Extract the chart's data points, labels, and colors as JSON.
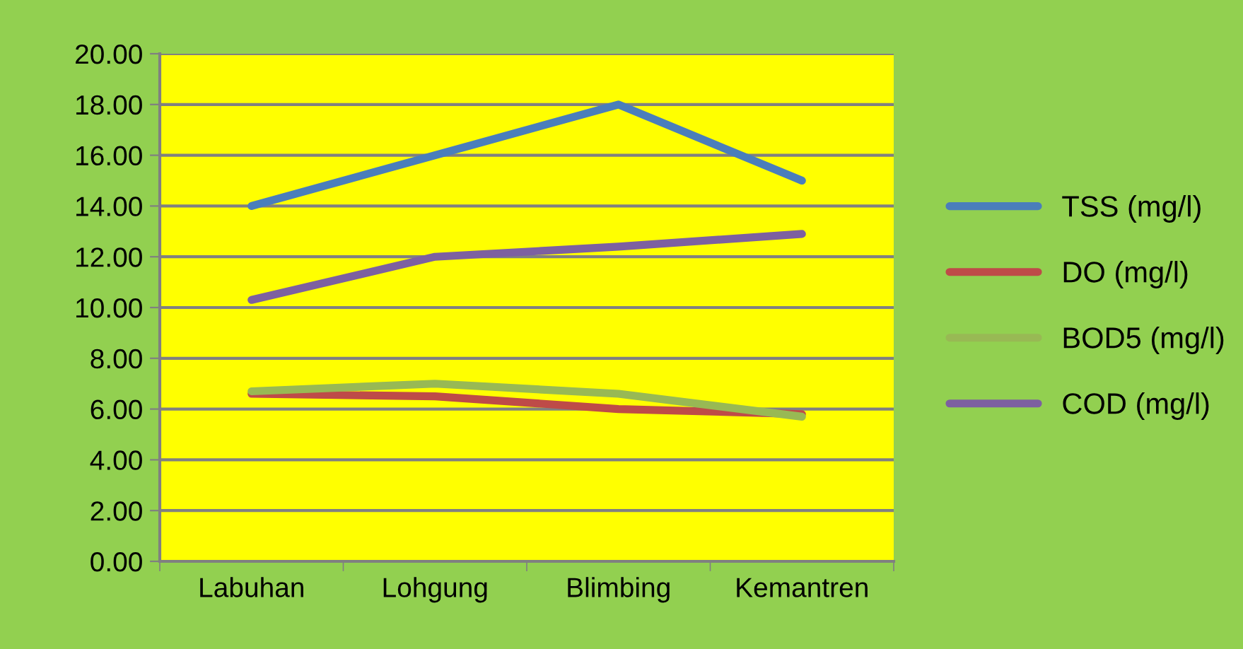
{
  "chart_data": {
    "type": "line",
    "categories": [
      "Labuhan",
      "Lohgung",
      "Blimbing",
      "Kemantren"
    ],
    "series": [
      {
        "name": "TSS (mg/l)",
        "color": "#4a7ebb",
        "values": [
          14,
          16,
          18,
          15
        ]
      },
      {
        "name": "DO (mg/l)",
        "color": "#be4b48",
        "values": [
          6.6,
          6.5,
          6.0,
          5.8
        ]
      },
      {
        "name": "BOD5 (mg/l)",
        "color": "#98b954",
        "values": [
          6.7,
          7.0,
          6.6,
          5.7
        ]
      },
      {
        "name": "COD (mg/l)",
        "color": "#7d60a0",
        "values": [
          10.3,
          12.0,
          12.4,
          12.9
        ]
      }
    ],
    "ylim": [
      0,
      20
    ],
    "yticks": [
      {
        "value": 0,
        "label": "0.00"
      },
      {
        "value": 2,
        "label": "2.00"
      },
      {
        "value": 4,
        "label": "4.00"
      },
      {
        "value": 6,
        "label": "6.00"
      },
      {
        "value": 8,
        "label": "8.00"
      },
      {
        "value": 10,
        "label": "10.00"
      },
      {
        "value": 12,
        "label": "12.00"
      },
      {
        "value": 14,
        "label": "14.00"
      },
      {
        "value": 16,
        "label": "16.00"
      },
      {
        "value": 18,
        "label": "18.00"
      },
      {
        "value": 20,
        "label": "20.00"
      }
    ],
    "grid": "y",
    "legend": "right",
    "marker": "none"
  }
}
